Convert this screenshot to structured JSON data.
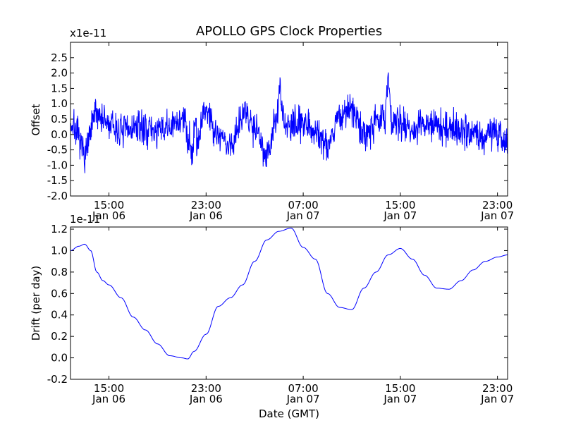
{
  "chart_data": [
    {
      "type": "line",
      "title": "APOLLO GPS Clock Properties",
      "xlabel": "",
      "ylabel": "Offset",
      "y_offset_text": "x1e-11",
      "ylim": [
        -2.0,
        3.0
      ],
      "y_ticks": [
        "-2.0",
        "-1.5",
        "-1.0",
        "-0.5",
        "0.0",
        "0.5",
        "1.0",
        "1.5",
        "2.0",
        "2.5"
      ],
      "x_ticks": [
        {
          "time": "15:00",
          "date": "Jan 06"
        },
        {
          "time": "23:00",
          "date": "Jan 06"
        },
        {
          "time": "07:00",
          "date": "Jan 07"
        },
        {
          "time": "15:00",
          "date": "Jan 07"
        },
        {
          "time": "23:00",
          "date": "Jan 07"
        }
      ],
      "xlim": [
        "Jan 06 11:50",
        "Jan 07 23:50"
      ],
      "grid": false,
      "series": [
        {
          "color": "#0000ff",
          "x": [
            "Jan 06 12:00",
            "Jan 06 13:00",
            "Jan 06 14:00",
            "Jan 06 15:00",
            "Jan 06 16:00",
            "Jan 06 17:00",
            "Jan 06 18:00",
            "Jan 06 19:00",
            "Jan 06 20:00",
            "Jan 06 21:00",
            "Jan 06 22:00",
            "Jan 06 23:00",
            "Jan 07 00:00",
            "Jan 07 01:00",
            "Jan 07 02:00",
            "Jan 07 03:00",
            "Jan 07 04:00",
            "Jan 07 05:00",
            "Jan 07 06:00",
            "Jan 07 07:00",
            "Jan 07 08:00",
            "Jan 07 09:00",
            "Jan 07 10:00",
            "Jan 07 11:00",
            "Jan 07 12:00",
            "Jan 07 13:00",
            "Jan 07 14:00",
            "Jan 07 15:00",
            "Jan 07 16:00",
            "Jan 07 17:00",
            "Jan 07 18:00",
            "Jan 07 19:00",
            "Jan 07 20:00",
            "Jan 07 21:00",
            "Jan 07 22:00",
            "Jan 07 23:00",
            "Jan 07 23:50"
          ],
          "values": [
            0.3,
            -0.6,
            0.7,
            0.3,
            0.1,
            0.2,
            0.2,
            0.1,
            0.2,
            0.5,
            -0.5,
            0.8,
            0.0,
            -0.4,
            0.7,
            0.3,
            -0.6,
            0.7,
            0.2,
            0.5,
            0.1,
            -0.3,
            0.6,
            0.8,
            0.0,
            0.5,
            0.4,
            0.4,
            0.2,
            0.3,
            0.3,
            0.2,
            0.2,
            0.0,
            0.0,
            0.1,
            -0.3
          ]
        }
      ]
    },
    {
      "type": "line",
      "title": "",
      "xlabel": "Date (GMT)",
      "ylabel": "Drift (per day)",
      "y_offset_text": "1e-11",
      "ylim": [
        -0.2,
        1.22
      ],
      "y_ticks": [
        "-0.2",
        "0.0",
        "0.2",
        "0.4",
        "0.6",
        "0.8",
        "1.0",
        "1.2"
      ],
      "x_ticks": [
        {
          "time": "15:00",
          "date": "Jan 06"
        },
        {
          "time": "23:00",
          "date": "Jan 06"
        },
        {
          "time": "07:00",
          "date": "Jan 07"
        },
        {
          "time": "15:00",
          "date": "Jan 07"
        },
        {
          "time": "23:00",
          "date": "Jan 07"
        }
      ],
      "xlim": [
        "Jan 06 11:50",
        "Jan 07 23:50"
      ],
      "grid": false,
      "series": [
        {
          "color": "#0000ff",
          "x": [
            "Jan 06 11:50",
            "Jan 06 12:30",
            "Jan 06 13:00",
            "Jan 06 13:30",
            "Jan 06 14:00",
            "Jan 06 14:30",
            "Jan 06 15:00",
            "Jan 06 16:00",
            "Jan 06 17:00",
            "Jan 06 18:00",
            "Jan 06 19:00",
            "Jan 06 20:00",
            "Jan 06 21:00",
            "Jan 06 21:30",
            "Jan 06 22:00",
            "Jan 06 23:00",
            "Jan 07 00:00",
            "Jan 07 01:00",
            "Jan 07 02:00",
            "Jan 07 03:00",
            "Jan 07 04:00",
            "Jan 07 05:00",
            "Jan 07 06:00",
            "Jan 07 07:00",
            "Jan 07 08:00",
            "Jan 07 09:00",
            "Jan 07 10:00",
            "Jan 07 11:00",
            "Jan 07 12:00",
            "Jan 07 13:00",
            "Jan 07 14:00",
            "Jan 07 15:00",
            "Jan 07 16:00",
            "Jan 07 17:00",
            "Jan 07 18:00",
            "Jan 07 19:00",
            "Jan 07 20:00",
            "Jan 07 21:00",
            "Jan 07 22:00",
            "Jan 07 23:00",
            "Jan 07 23:50"
          ],
          "values": [
            1.0,
            1.04,
            1.06,
            1.0,
            0.8,
            0.72,
            0.68,
            0.56,
            0.38,
            0.26,
            0.13,
            0.02,
            0.0,
            -0.01,
            0.06,
            0.22,
            0.48,
            0.56,
            0.68,
            0.9,
            1.1,
            1.18,
            1.21,
            1.03,
            0.92,
            0.6,
            0.47,
            0.45,
            0.65,
            0.8,
            0.96,
            1.02,
            0.92,
            0.77,
            0.65,
            0.64,
            0.72,
            0.82,
            0.9,
            0.94,
            0.96
          ]
        }
      ]
    }
  ]
}
